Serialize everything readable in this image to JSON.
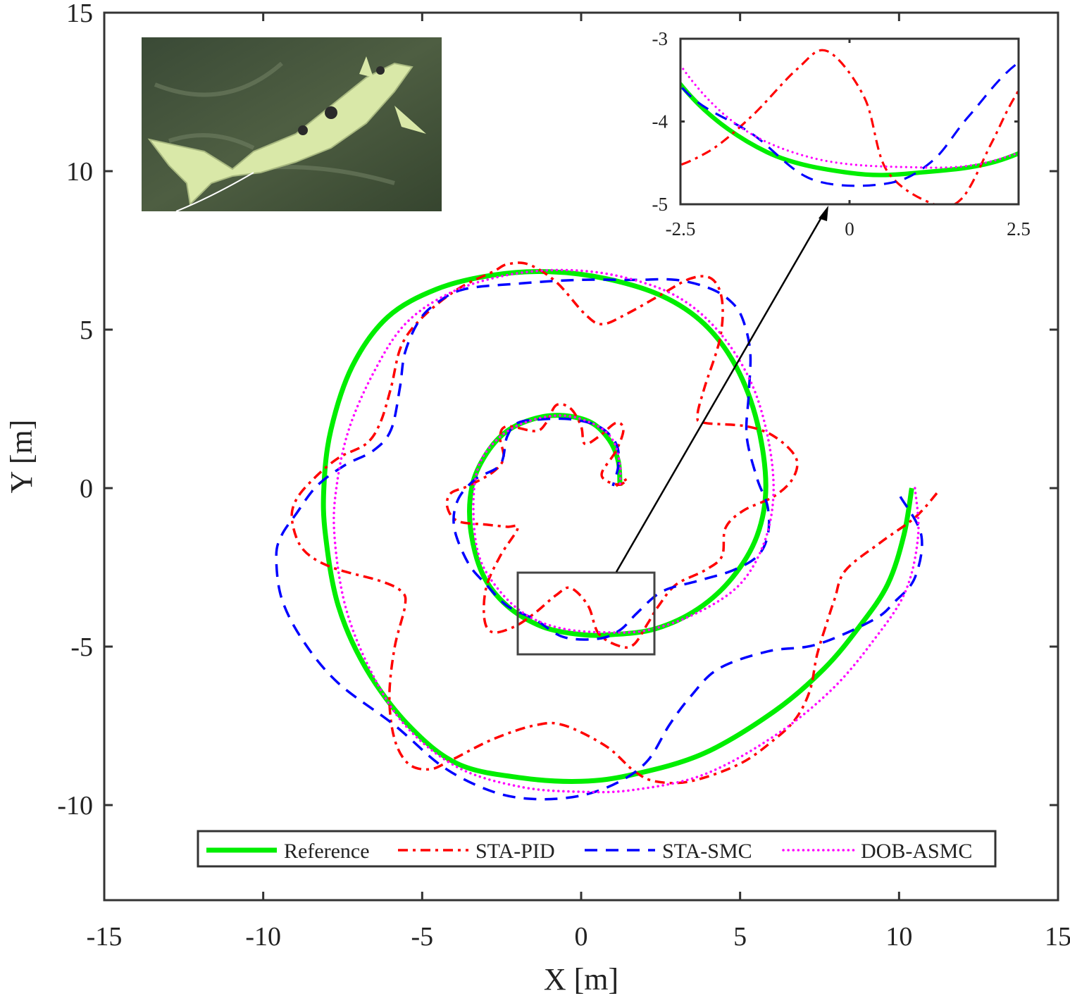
{
  "chart_data": {
    "type": "line",
    "xlabel": "X [m]",
    "ylabel": "Y [m]",
    "xlim": [
      -15,
      15
    ],
    "ylim": [
      -13,
      15
    ],
    "xticks": [
      "-15",
      "-10",
      "-5",
      "0",
      "5",
      "10",
      "15"
    ],
    "yticks": [
      "-10",
      "-5",
      "0",
      "5",
      "10",
      "15"
    ],
    "grid": false,
    "legend_position": "bottom",
    "inset": {
      "xlim": [
        -2.5,
        2.5
      ],
      "ylim": [
        -5,
        -3
      ],
      "xticks": [
        "-2.5",
        "0",
        "2.5"
      ],
      "yticks": [
        "-3",
        "-4",
        "-5"
      ],
      "position": "top-right",
      "zoom_region_highlighted": true
    },
    "photo": {
      "subject": "robotic fish",
      "position": "top-left"
    },
    "series": [
      {
        "name": "Reference",
        "color": "#00ee00",
        "style": "solid",
        "x": [
          10.4,
          10.15,
          9.64,
          8.75,
          7.64,
          6.09,
          3.88,
          1.66,
          0,
          -1.88,
          -3.88,
          -5.43,
          -6.76,
          -7.64,
          -8.04,
          -8.09,
          -7.87,
          -7.2,
          -6.09,
          -4.54,
          -2.77,
          -1.0,
          0.78,
          2.55,
          3.88,
          4.87,
          5.54,
          5.81,
          5.54,
          4.76,
          3.66,
          2.33,
          1.0,
          0,
          -1.22,
          -2.33,
          -3.1,
          -3.48,
          -3.43,
          -2.99,
          -2.33,
          -1.44,
          -0.55,
          0.33,
          0.89,
          1.17,
          1.22
        ],
        "y": [
          0,
          -1.49,
          -3.04,
          -4.37,
          -5.7,
          -7.03,
          -8.36,
          -9.03,
          -9.25,
          -9.14,
          -8.7,
          -7.48,
          -5.7,
          -3.71,
          -1.49,
          0.07,
          1.84,
          3.84,
          5.39,
          6.28,
          6.72,
          6.83,
          6.61,
          6.06,
          5.17,
          3.84,
          2.06,
          0.07,
          -1.49,
          -2.82,
          -3.82,
          -4.44,
          -4.62,
          -4.62,
          -4.37,
          -3.71,
          -2.71,
          -1.26,
          0.07,
          1.07,
          1.8,
          2.2,
          2.29,
          2.06,
          1.51,
          0.84,
          0.07
        ]
      },
      {
        "name": "STA-PID",
        "color": "#ff0000",
        "style": "dashdot",
        "x": [
          11.19,
          10.5,
          9.42,
          8.31,
          7.98,
          7.76,
          7.42,
          7.2,
          6.76,
          6.09,
          4.99,
          3.43,
          2.33,
          1.66,
          0.78,
          -0.55,
          -1.44,
          -2.77,
          -4.1,
          -4.76,
          -5.43,
          -5.87,
          -6.03,
          -5.87,
          -5.54,
          -5.65,
          -6.32,
          -7.87,
          -8.75,
          -9.09,
          -8.97,
          -8.42,
          -7.64,
          -6.76,
          -6.32,
          -5.98,
          -5.65,
          -4.99,
          -3.88,
          -2.77,
          -2.33,
          -1.66,
          -0.78,
          0.11,
          0.66,
          1.44,
          2.44,
          3.43,
          4.1,
          4.43,
          4.37,
          3.88,
          3.66,
          3.88,
          5.21,
          6.09,
          6.76,
          6.65,
          6.05,
          5.1,
          4.54,
          4.43,
          3.88,
          2.99,
          2.44,
          2.1,
          1.66,
          1.22,
          0.55,
          0.22,
          -0.33,
          -0.78,
          -1.44,
          -2.1,
          -2.77,
          -3.04,
          -2.99,
          -2.55,
          -1.99,
          -2.33,
          -2.99,
          -3.88,
          -4.21,
          -4.1,
          -3.55,
          -2.77,
          -2.44,
          -2.55,
          -2.33,
          -1.44,
          -1.1,
          -0.78,
          -0.33,
          0,
          0.11,
          0.55,
          1.1,
          1.33,
          1.1,
          0.66,
          0.78,
          1.22,
          1.44,
          1.1
        ],
        "y": [
          -0.16,
          -0.93,
          -1.71,
          -2.6,
          -3.48,
          -4.15,
          -5.26,
          -6.37,
          -7.26,
          -7.92,
          -8.7,
          -9.25,
          -9.25,
          -8.92,
          -8.14,
          -7.48,
          -7.48,
          -7.92,
          -8.59,
          -8.87,
          -8.7,
          -7.92,
          -6.59,
          -5.04,
          -3.71,
          -3.26,
          -2.93,
          -2.49,
          -1.93,
          -1.04,
          -0.38,
          0.29,
          0.95,
          1.4,
          2.06,
          3.17,
          4.5,
          5.39,
          6.28,
          6.83,
          7.06,
          7.06,
          6.5,
          5.5,
          5.17,
          5.5,
          6.06,
          6.61,
          6.61,
          5.95,
          4.73,
          3.17,
          2.29,
          2.06,
          1.95,
          1.62,
          0.95,
          0.29,
          -0.27,
          -0.71,
          -1.26,
          -2.15,
          -2.6,
          -3.04,
          -3.71,
          -4.26,
          -4.93,
          -4.99,
          -4.59,
          -3.71,
          -3.15,
          -3.37,
          -3.93,
          -4.37,
          -4.55,
          -4.15,
          -3.15,
          -2.15,
          -1.26,
          -1.22,
          -1.15,
          -1.04,
          -0.6,
          -0.16,
          0.07,
          0.51,
          0.95,
          1.62,
          1.95,
          1.8,
          2.06,
          2.62,
          2.51,
          1.95,
          1.4,
          1.62,
          2.06,
          1.84,
          1.18,
          0.51,
          0.24,
          0.11,
          0.29,
          0.07
        ]
      },
      {
        "name": "STA-SMC",
        "color": "#0000ff",
        "style": "dashed",
        "x": [
          10.04,
          10.7,
          10.5,
          9.86,
          9.2,
          7.42,
          5.87,
          4.32,
          3.43,
          2.77,
          2.1,
          1.22,
          0,
          -1.44,
          -2.77,
          -4.32,
          -5.87,
          -7.64,
          -8.75,
          -9.42,
          -9.59,
          -9.42,
          -8.97,
          -8.31,
          -7.42,
          -6.54,
          -5.98,
          -5.7,
          -5.54,
          -5.1,
          -4.54,
          -3.66,
          -1.88,
          -0.11,
          1.66,
          2.99,
          4.1,
          4.76,
          5.1,
          5.32,
          5.27,
          5.21,
          5.54,
          5.87,
          5.87,
          5.54,
          4.76,
          3.66,
          2.55,
          1.77,
          1.22,
          0.55,
          -0.55,
          -1.44,
          -2.33,
          -2.99,
          -3.55,
          -3.99,
          -3.88,
          -3.32,
          -2.55,
          -2.33,
          -1.99,
          -1.22,
          -0.33,
          0.55,
          1.1,
          1.17,
          1.0
        ],
        "y": [
          -0.27,
          -1.49,
          -2.82,
          -3.59,
          -4.15,
          -4.93,
          -5.15,
          -5.7,
          -6.59,
          -7.48,
          -8.59,
          -9.25,
          -9.7,
          -9.81,
          -9.58,
          -8.81,
          -7.48,
          -6.15,
          -4.81,
          -3.48,
          -2.15,
          -1.49,
          -0.82,
          0.07,
          0.73,
          1.18,
          1.84,
          3.17,
          4.28,
          5.28,
          5.84,
          6.28,
          6.46,
          6.57,
          6.57,
          6.57,
          6.28,
          5.84,
          5.28,
          4.28,
          2.95,
          1.62,
          0.29,
          -0.6,
          -1.49,
          -2.15,
          -2.6,
          -2.93,
          -3.26,
          -3.93,
          -4.48,
          -4.75,
          -4.7,
          -4.15,
          -3.71,
          -3.04,
          -2.37,
          -1.26,
          -0.38,
          0.29,
          0.73,
          1.62,
          2.06,
          2.17,
          2.17,
          1.95,
          1.4,
          0.73,
          0.07
        ]
      },
      {
        "name": "DOB-ASMC",
        "color": "#ff00ff",
        "style": "dotted",
        "x": [
          10.5,
          10.6,
          10.2,
          9.2,
          7.87,
          6.09,
          3.88,
          1.66,
          0,
          -1.88,
          -3.88,
          -5.54,
          -6.65,
          -7.42,
          -7.76,
          -7.69,
          -7.31,
          -6.54,
          -5.54,
          -4.1,
          -2.33,
          -0.55,
          1.22,
          2.99,
          4.32,
          5.32,
          5.87,
          6.05,
          5.76,
          4.99,
          3.66,
          2.1,
          0.78,
          -0.55,
          -1.66,
          -2.55,
          -3.21,
          -3.39,
          -3.21,
          -2.55,
          -1.66,
          -0.55,
          0.44,
          1.0,
          1.22,
          1.22
        ],
        "y": [
          0,
          -1.5,
          -3.26,
          -4.8,
          -6.37,
          -7.81,
          -9.03,
          -9.52,
          -9.58,
          -9.43,
          -8.81,
          -7.48,
          -5.7,
          -3.71,
          -1.49,
          0.07,
          1.84,
          3.62,
          5.17,
          6.17,
          6.72,
          6.88,
          6.68,
          6.06,
          4.95,
          3.39,
          1.62,
          -0.16,
          -1.71,
          -3.04,
          -3.93,
          -4.48,
          -4.55,
          -4.44,
          -4.04,
          -3.26,
          -2.15,
          -0.6,
          0.73,
          1.62,
          2.11,
          2.29,
          2.0,
          1.51,
          0.73,
          0.07
        ]
      }
    ]
  }
}
